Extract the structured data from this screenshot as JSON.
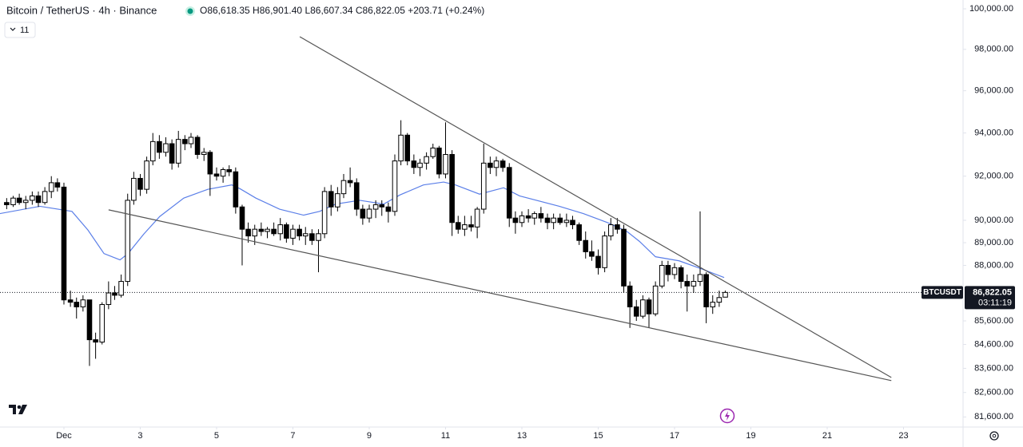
{
  "chart_data": {
    "type": "candlestick",
    "title": "Bitcoin / TetherUS · 4h · Binance",
    "ohlc_text": "O86,618.35 H86,901.40 L86,607.34 C86,822.05 +203.71 (+0.24%)",
    "indicator_count": "11",
    "symbol_tag": "BTCUSDT",
    "countdown": "03:11:19",
    "log_scale": true,
    "grid": false,
    "color_up": "#ffffff",
    "color_down": "#000000",
    "x": [
      -0.5,
      -0.33,
      -0.17,
      0,
      0.17,
      0.33,
      0.5,
      0.67,
      0.83,
      1,
      1.17,
      1.33,
      1.5,
      1.67,
      1.83,
      2,
      2.17,
      2.33,
      2.5,
      2.67,
      2.83,
      3,
      3.17,
      3.33,
      3.5,
      3.67,
      3.83,
      4,
      4.17,
      4.33,
      4.5,
      4.67,
      4.83,
      5,
      5.17,
      5.33,
      5.5,
      5.67,
      5.83,
      6,
      6.17,
      6.33,
      6.5,
      6.67,
      6.83,
      7,
      7.17,
      7.33,
      7.5,
      7.67,
      7.83,
      8,
      8.17,
      8.33,
      8.5,
      8.67,
      8.83,
      9,
      9.17,
      9.33,
      9.5,
      9.67,
      9.83,
      10,
      10.17,
      10.33,
      10.5,
      10.67,
      10.83,
      11,
      11.17,
      11.33,
      11.5,
      11.67,
      11.83,
      12,
      12.17,
      12.33,
      12.5,
      12.67,
      12.83,
      13,
      13.17,
      13.33,
      13.5,
      13.67,
      13.83,
      14,
      14.17,
      14.33,
      14.5,
      14.67,
      14.83,
      15,
      15.17,
      15.33,
      15.5,
      15.67,
      15.83,
      16,
      16.17,
      16.33,
      16.5,
      16.67,
      16.83,
      17,
      17.17,
      17.33,
      17.5,
      17.67,
      17.83,
      18,
      18.17,
      18.33
    ],
    "open": [
      90800,
      90700,
      91000,
      90800,
      90900,
      91100,
      90800,
      91300,
      91700,
      91500,
      86500,
      86400,
      86200,
      86500,
      84800,
      84700,
      86300,
      86800,
      86700,
      87300,
      90900,
      91900,
      91400,
      92700,
      93600,
      93100,
      93500,
      92600,
      93700,
      93500,
      93800,
      93000,
      93100,
      92100,
      92000,
      92300,
      92200,
      90600,
      89600,
      89300,
      89600,
      89500,
      89600,
      89400,
      89800,
      89200,
      89600,
      89300,
      89400,
      89100,
      89400,
      91300,
      90600,
      91200,
      91800,
      91700,
      90500,
      90100,
      90500,
      90700,
      90600,
      90400,
      92700,
      93900,
      92700,
      92400,
      92600,
      92900,
      93300,
      92100,
      93000,
      89900,
      89600,
      89800,
      89700,
      90500,
      92600,
      92400,
      92700,
      92400,
      90100,
      89900,
      90200,
      90100,
      90300,
      90100,
      89900,
      90100,
      89900,
      90000,
      89800,
      89100,
      88600,
      88400,
      87900,
      89300,
      89800,
      89600,
      87100,
      86200,
      85800,
      86500,
      85900,
      87100,
      88000,
      87600,
      87900,
      87300,
      87100,
      87300,
      87600,
      86200,
      86400,
      86618.35
    ],
    "high": [
      91000,
      91100,
      91200,
      91100,
      91300,
      91300,
      91500,
      92000,
      91900,
      91700,
      86900,
      86600,
      86700,
      86500,
      85100,
      86400,
      87300,
      87100,
      87600,
      91200,
      92200,
      92100,
      92900,
      94000,
      93900,
      93800,
      93700,
      94100,
      93900,
      94000,
      93900,
      93300,
      93200,
      92400,
      92400,
      92500,
      92400,
      90700,
      89900,
      89800,
      89900,
      89700,
      89900,
      90100,
      89900,
      89800,
      89800,
      89700,
      89600,
      89600,
      91500,
      91600,
      91500,
      92100,
      92400,
      91900,
      90700,
      90700,
      90900,
      90900,
      90800,
      93000,
      94600,
      94000,
      93000,
      92800,
      93100,
      93500,
      93400,
      94500,
      93200,
      90200,
      90200,
      90200,
      90600,
      93500,
      92900,
      92900,
      92800,
      92600,
      90400,
      90400,
      90500,
      90400,
      90600,
      90300,
      90300,
      90300,
      90300,
      90200,
      89900,
      89500,
      89100,
      88700,
      89500,
      90100,
      90100,
      89800,
      87300,
      86500,
      86700,
      86600,
      87300,
      88200,
      88200,
      88100,
      88000,
      87600,
      87600,
      90400,
      87700,
      86700,
      86900,
      86901.4
    ],
    "low": [
      90500,
      90600,
      90700,
      90500,
      90700,
      90600,
      90700,
      91000,
      91300,
      86300,
      86200,
      85700,
      86000,
      83700,
      84000,
      84600,
      86100,
      86500,
      86600,
      87100,
      90700,
      91100,
      91200,
      92500,
      92800,
      92900,
      92300,
      92400,
      93200,
      93300,
      92800,
      92700,
      91100,
      91800,
      91700,
      92000,
      90300,
      88000,
      89000,
      88900,
      89300,
      89200,
      89300,
      89100,
      89000,
      88900,
      89100,
      88900,
      88900,
      87700,
      89200,
      90200,
      90400,
      91000,
      91500,
      90200,
      89800,
      89900,
      90100,
      90200,
      89900,
      90200,
      92500,
      92500,
      92100,
      92000,
      92300,
      92800,
      91900,
      91900,
      89300,
      89400,
      89300,
      89500,
      89200,
      90300,
      92100,
      92000,
      92200,
      89700,
      89400,
      89700,
      89900,
      89800,
      89900,
      89600,
      89600,
      89800,
      89700,
      89600,
      88900,
      88300,
      88200,
      87600,
      87700,
      89100,
      89400,
      86800,
      85300,
      85600,
      85700,
      85300,
      85800,
      87000,
      87300,
      87400,
      87000,
      86000,
      86800,
      87100,
      85500,
      85900,
      86200,
      86607.34
    ],
    "close": [
      90700,
      91000,
      90800,
      90900,
      91100,
      90800,
      91300,
      91700,
      91500,
      86500,
      86400,
      86200,
      86500,
      84800,
      84700,
      86300,
      86800,
      86700,
      87300,
      90900,
      91900,
      91400,
      92700,
      93600,
      93100,
      93500,
      92600,
      93700,
      93500,
      93800,
      93000,
      93100,
      92100,
      92000,
      92300,
      92200,
      90600,
      89600,
      89300,
      89600,
      89500,
      89600,
      89400,
      89800,
      89200,
      89600,
      89300,
      89400,
      89100,
      89400,
      91300,
      90600,
      91200,
      91800,
      91700,
      90500,
      90100,
      90500,
      90700,
      90600,
      90400,
      92700,
      93900,
      92700,
      92400,
      92600,
      92900,
      93300,
      92100,
      93000,
      89900,
      89600,
      89800,
      89700,
      90500,
      92600,
      92400,
      92700,
      92400,
      90100,
      89900,
      90200,
      90100,
      90300,
      90100,
      89900,
      90100,
      89900,
      90000,
      89800,
      89100,
      88600,
      88400,
      87900,
      89300,
      89800,
      89600,
      87100,
      86200,
      85800,
      86500,
      85900,
      87100,
      88000,
      87600,
      87900,
      87300,
      87100,
      87300,
      87600,
      86200,
      86400,
      86600,
      86822.05
    ],
    "ma": {
      "color": "#5b7fe8",
      "x": [
        -0.68,
        0.37,
        1.21,
        1.63,
        2.05,
        2.47,
        2.68,
        3.09,
        3.51,
        4.14,
        4.77,
        5.4,
        5.61,
        6.03,
        6.65,
        7.28,
        7.7,
        8.12,
        8.75,
        9.38,
        9.8,
        10.42,
        10.95,
        11.26,
        11.89,
        12.52,
        12.94,
        13.98,
        14.61,
        15.24,
        15.76,
        16.08,
        16.5,
        17.12,
        17.75,
        18.3
      ],
      "values": [
        90300,
        90630,
        90400,
        89560,
        88520,
        88240,
        88520,
        89380,
        90170,
        91000,
        91400,
        91600,
        91430,
        91000,
        90500,
        90230,
        90400,
        90730,
        90900,
        90730,
        91140,
        91600,
        91730,
        91600,
        91180,
        91470,
        91100,
        90630,
        90300,
        89900,
        89490,
        89060,
        88380,
        88200,
        87820,
        87470
      ]
    },
    "trendlines": [
      {
        "color": "#555555",
        "x": [
          7.18,
          22.68
        ],
        "values": [
          98620,
          83220
        ]
      },
      {
        "color": "#555555",
        "x": [
          2.17,
          22.68
        ],
        "values": [
          90470,
          83090
        ]
      }
    ],
    "last_price": {
      "value": 86822.05,
      "label": "86,822.05"
    },
    "xlim": [
      -0.675,
      24.56
    ],
    "ylim": [
      81190,
      100440
    ],
    "xticks": [
      {
        "value": 1,
        "label": "Dec"
      },
      3,
      5,
      7,
      9,
      11,
      13,
      15,
      17,
      19,
      21,
      23
    ],
    "yticks": [
      {
        "value": 100000,
        "label": "100,000.00"
      },
      {
        "value": 98000,
        "label": "98,000.00"
      },
      {
        "value": 96000,
        "label": "96,000.00"
      },
      {
        "value": 94000,
        "label": "94,000.00"
      },
      {
        "value": 92000,
        "label": "92,000.00"
      },
      {
        "value": 90000,
        "label": "90,000.00"
      },
      {
        "value": 89000,
        "label": "89,000.00"
      },
      {
        "value": 88000,
        "label": "88,000.00"
      },
      {
        "value": 85600,
        "label": "85,600.00"
      },
      {
        "value": 84600,
        "label": "84,600.00"
      },
      {
        "value": 83600,
        "label": "83,600.00"
      },
      {
        "value": 82600,
        "label": "82,600.00"
      },
      {
        "value": 81600,
        "label": "81,600.00"
      }
    ]
  }
}
